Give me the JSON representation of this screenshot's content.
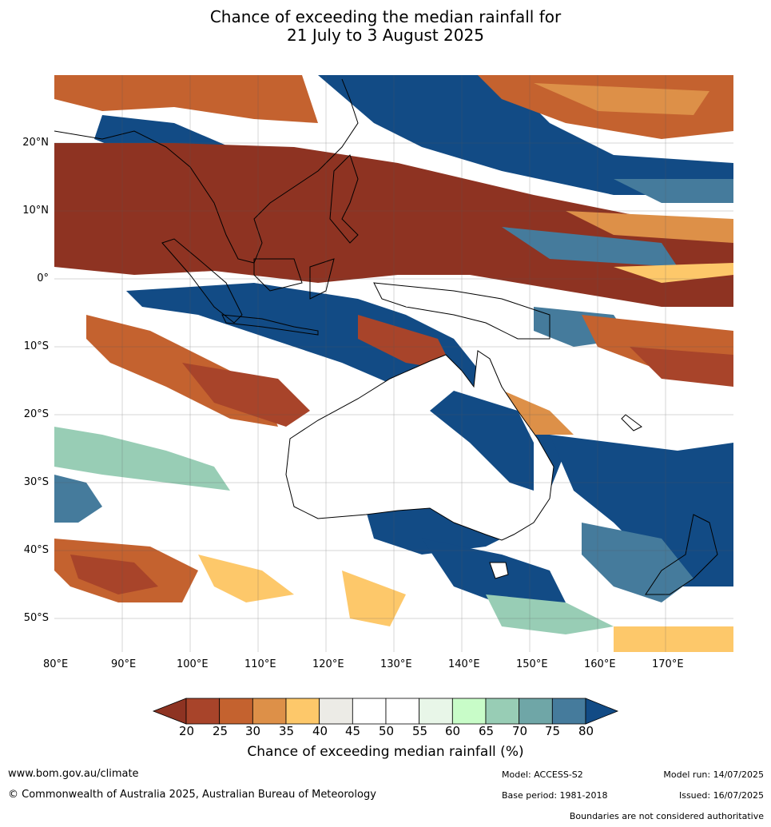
{
  "title_line1": "Chance of exceeding the median rainfall for",
  "title_line2": "21 July to 3 August 2025",
  "lat_labels": [
    "20°N",
    "10°N",
    "0°",
    "10°S",
    "20°S",
    "30°S",
    "40°S",
    "50°S"
  ],
  "lon_labels": [
    "80°E",
    "90°E",
    "100°E",
    "110°E",
    "120°E",
    "130°E",
    "140°E",
    "150°E",
    "160°E",
    "170°E"
  ],
  "colorbar": {
    "ticks": [
      "20",
      "25",
      "30",
      "35",
      "40",
      "45",
      "50",
      "55",
      "60",
      "65",
      "70",
      "75",
      "80"
    ],
    "colors": [
      "#a8442a",
      "#c4622f",
      "#dd9048",
      "#fdc86a",
      "#ecebe6",
      "#ffffff",
      "#ffffff",
      "#e8f6e8",
      "#c8fcc8",
      "#98cdb5",
      "#6fa6a7",
      "#457b9c"
    ],
    "low_color": "#8e3322",
    "high_color": "#124b85",
    "label": "Chance of exceeding median rainfall (%)"
  },
  "footer": {
    "website": "www.bom.gov.au/climate",
    "copyright": "© Commonwealth of Australia 2025, Australian Bureau of Meteorology",
    "model": "Model: ACCESS-S2",
    "base_period": "Base period: 1981-2018",
    "model_run": "Model run: 14/07/2025",
    "issued": "Issued: 16/07/2025",
    "disclaimer": "Boundaries are not considered authoritative"
  }
}
